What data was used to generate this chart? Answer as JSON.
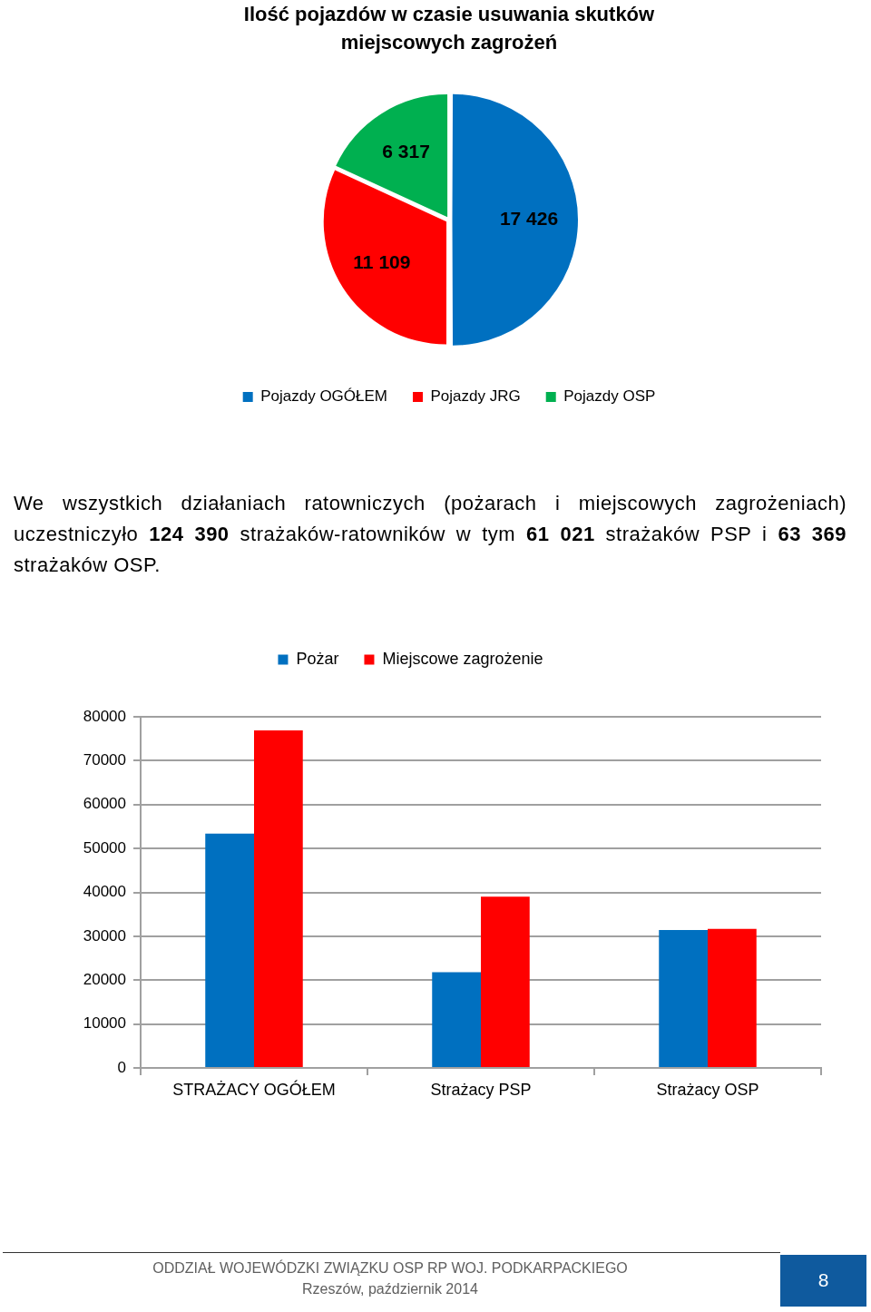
{
  "chart_data": [
    {
      "type": "pie",
      "title": "Ilość pojazdów w czasie usuwania skutków miejscowych zagrożeń",
      "categories": [
        "Pojazdy OGÓŁEM",
        "Pojazdy JRG",
        "Pojazdy OSP"
      ],
      "values": [
        17426,
        11109,
        6317
      ],
      "colors": [
        "#0070c0",
        "#ff0000",
        "#00b050"
      ],
      "value_labels": [
        "17 426",
        "11 109",
        "6 317"
      ],
      "legend": "bottom"
    },
    {
      "type": "bar",
      "categories": [
        "STRAŻACY OGÓŁEM",
        "Strażacy PSP",
        "Strażacy OSP"
      ],
      "series": [
        {
          "name": "Pożar",
          "color": "#0070c0",
          "values": [
            53400,
            21800,
            31400
          ]
        },
        {
          "name": "Miejscowe zagrożenie",
          "color": "#ff0000",
          "values": [
            76900,
            39000,
            31700
          ]
        }
      ],
      "ylim": [
        0,
        80000
      ],
      "yticks": [
        0,
        10000,
        20000,
        30000,
        40000,
        50000,
        60000,
        70000,
        80000
      ],
      "grid": "y",
      "legend": "top",
      "annotations": [
        "We wszystkich działaniach ratowniczych (pożarach i miejscowych zagrożeniach) uczestniczyło 124 390 strażaków-ratowników w tym 61 021 strażaków PSP i 63 369 strażaków OSP.",
        "ODDZIAŁ WOJEWÓDZKI ZWIĄZKU OSP RP WOJ. PODKARPACKIEGO",
        "Rzeszów, październik  2014",
        "8"
      ]
    }
  ]
}
